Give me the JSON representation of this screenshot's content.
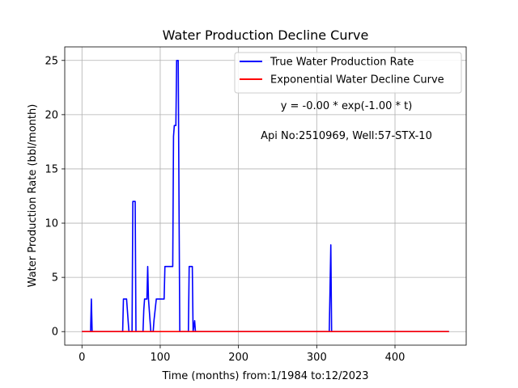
{
  "chart_data": {
    "type": "line",
    "title": "Water Production Decline Curve",
    "xlabel": "Time (months) from:1/1984 to:12/2023",
    "ylabel": "Water Production Rate (bbl/month)",
    "xlim": [
      -22,
      491
    ],
    "ylim": [
      -1.25,
      26.25
    ],
    "xticks": [
      0,
      100,
      200,
      300,
      400
    ],
    "yticks": [
      0,
      5,
      10,
      15,
      20,
      25
    ],
    "grid": true,
    "legend_position": "top-right",
    "annotations": [
      "y = -0.00 * exp(-1.00 * t)",
      "Api No:2510969, Well:57-STX-10"
    ],
    "series": [
      {
        "name": "True Water Production Rate",
        "color": "#0000ff",
        "x": [
          0,
          11,
          12,
          13,
          52,
          53,
          57,
          60,
          64,
          65,
          68,
          69,
          78,
          79,
          80,
          83,
          84,
          85,
          88,
          91,
          92,
          95,
          96,
          105,
          106,
          116,
          117,
          118,
          120,
          121,
          122,
          123,
          124,
          125,
          136,
          137,
          141,
          142,
          144,
          145,
          146,
          316,
          317,
          318,
          319,
          469
        ],
        "y": [
          0,
          0,
          3,
          0,
          0,
          3,
          3,
          0,
          0,
          12,
          12,
          0,
          0,
          2,
          3,
          3,
          6,
          3,
          0,
          0,
          1,
          3,
          3,
          3,
          6,
          6,
          18,
          19,
          19,
          25,
          25,
          25,
          12,
          0,
          0,
          6,
          6,
          0,
          1,
          0,
          0,
          0,
          4,
          8,
          0,
          0
        ]
      },
      {
        "name": "Exponential Water Decline Curve",
        "color": "#ff0000",
        "x": [
          0,
          50,
          100,
          150,
          200,
          250,
          300,
          350,
          400,
          469
        ],
        "y": [
          0,
          0,
          0,
          0,
          0,
          0,
          0,
          0,
          0,
          0
        ]
      }
    ]
  }
}
